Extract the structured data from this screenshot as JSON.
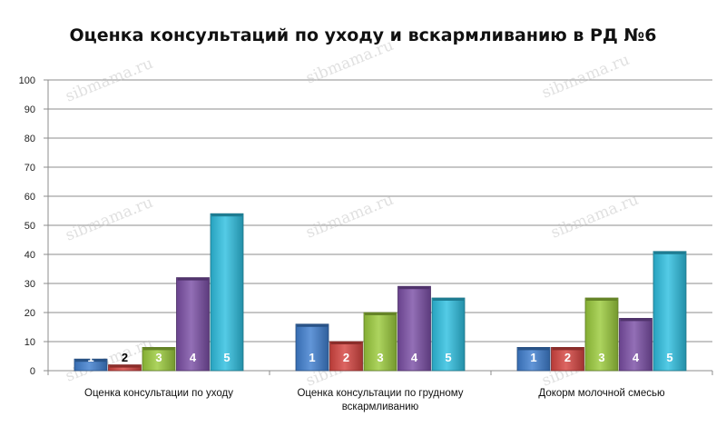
{
  "chart_data": {
    "type": "bar",
    "title": "Оценка консультаций по уходу и вскармливанию в РД №6",
    "ylim": [
      0,
      100
    ],
    "yticks": [
      0,
      10,
      20,
      30,
      40,
      50,
      60,
      70,
      80,
      90,
      100
    ],
    "grid": true,
    "categories": [
      [
        "Оценка консультации по уходу"
      ],
      [
        "Оценка консультации по грудному",
        "вскармливанию"
      ],
      [
        "Докорм молочной смесью"
      ]
    ],
    "series": [
      {
        "name": "1",
        "color": "#3f7fd0",
        "values": [
          4,
          16,
          8
        ]
      },
      {
        "name": "2",
        "color": "#d64541",
        "values": [
          2,
          10,
          8
        ]
      },
      {
        "name": "3",
        "color": "#9bcb3c",
        "values": [
          8,
          20,
          25
        ]
      },
      {
        "name": "4",
        "color": "#7b4fa6",
        "values": [
          32,
          29,
          18
        ]
      },
      {
        "name": "5",
        "color": "#2ebfe0",
        "values": [
          54,
          25,
          41
        ]
      }
    ],
    "watermark": "sibmama.ru"
  }
}
